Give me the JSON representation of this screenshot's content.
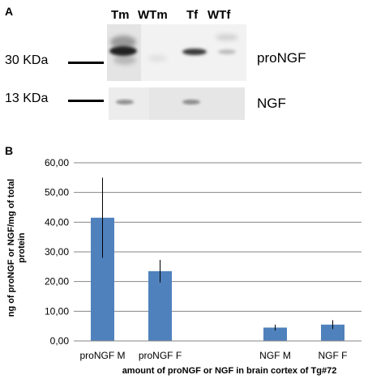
{
  "panel_a": {
    "label": "A",
    "lanes": [
      "Tm",
      "WTm",
      "Tf",
      "WTf"
    ],
    "markers": [
      "30 KDa",
      "13 KDa"
    ],
    "bands": [
      "proNGF",
      "NGF"
    ]
  },
  "panel_b": {
    "label": "B"
  },
  "chart_data": {
    "type": "bar",
    "categories": [
      "proNGF M",
      "proNGF F",
      "",
      "NGF M",
      "NGF F"
    ],
    "values": [
      41.5,
      23.5,
      null,
      4.5,
      5.5
    ],
    "errors": [
      13.5,
      3.8,
      null,
      1.0,
      1.5
    ],
    "bar_color": "#4f81bd",
    "ylabel": "ng of proNGF or NGF/mg of total protein",
    "xlabel": "amount of proNGF or NGF in brain cortex of Tg#72",
    "ylim": [
      0,
      60
    ],
    "yticks": [
      "0,00",
      "10,00",
      "20,00",
      "30,00",
      "40,00",
      "50,00",
      "60,00"
    ],
    "grid": true
  }
}
